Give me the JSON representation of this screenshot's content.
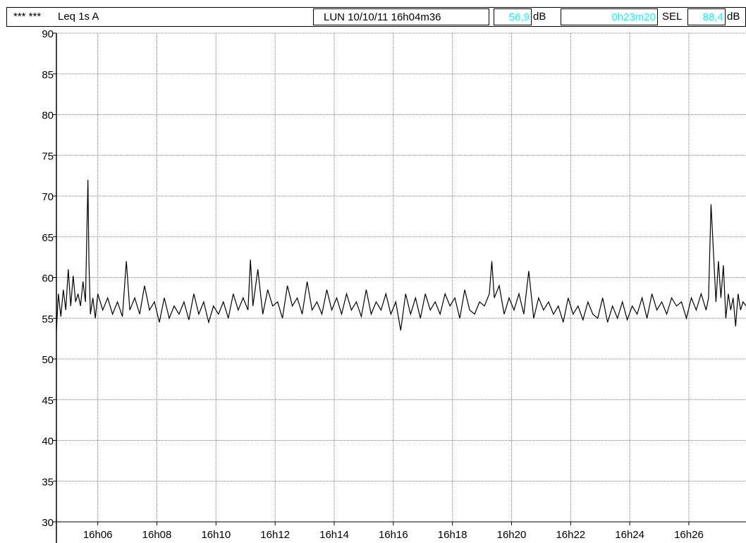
{
  "header": {
    "channel": "*** ***",
    "measure": "Leq 1s  A",
    "datetime": "LUN 10/10/11 16h04m36",
    "leq_value": "56,9",
    "leq_unit": "dB",
    "duration": "0h23m20",
    "sel_label": "SEL",
    "sel_value": "88,4",
    "sel_unit": "dB"
  },
  "colors": {
    "trace": "#000000",
    "grid": "#808080",
    "value_text": "#00ffff"
  },
  "chart_data": {
    "type": "line",
    "title": "",
    "xlabel": "",
    "ylabel": "",
    "ylim": [
      30,
      90
    ],
    "y_ticks": [
      30,
      35,
      40,
      45,
      50,
      55,
      60,
      65,
      70,
      75,
      80,
      85,
      90
    ],
    "y_tick_labels": [
      "30",
      "35",
      "40",
      "45",
      "50",
      "55",
      "60",
      "65",
      "70",
      "75",
      "80",
      "85",
      "90"
    ],
    "xlim": [
      "16:04:36",
      "16:27:56"
    ],
    "x_ticks": [
      "16:06",
      "16:08",
      "16:10",
      "16:12",
      "16:14",
      "16:16",
      "16:18",
      "16:20",
      "16:22",
      "16:24",
      "16:26"
    ],
    "x_tick_labels": [
      "16h06",
      "16h08",
      "16h10",
      "16h12",
      "16h14",
      "16h16",
      "16h18",
      "16h20",
      "16h22",
      "16h24",
      "16h26"
    ],
    "grid": true,
    "series": [
      {
        "values_description_free": true,
        "x": [
          "16:04:36",
          "16:04:40",
          "16:04:45",
          "16:04:50",
          "16:04:55",
          "16:05:00",
          "16:05:05",
          "16:05:10",
          "16:05:15",
          "16:05:20",
          "16:05:25",
          "16:05:30",
          "16:05:35",
          "16:05:40",
          "16:05:42",
          "16:05:45",
          "16:05:50",
          "16:05:55",
          "16:06:00",
          "16:06:10",
          "16:06:20",
          "16:06:30",
          "16:06:40",
          "16:06:50",
          "16:06:58",
          "16:07:05",
          "16:07:15",
          "16:07:25",
          "16:07:35",
          "16:07:45",
          "16:07:55",
          "16:08:05",
          "16:08:15",
          "16:08:25",
          "16:08:35",
          "16:08:45",
          "16:08:55",
          "16:09:05",
          "16:09:15",
          "16:09:25",
          "16:09:35",
          "16:09:45",
          "16:09:55",
          "16:10:05",
          "16:10:15",
          "16:10:25",
          "16:10:35",
          "16:10:45",
          "16:10:55",
          "16:11:05",
          "16:11:10",
          "16:11:15",
          "16:11:25",
          "16:11:35",
          "16:11:45",
          "16:11:55",
          "16:12:05",
          "16:12:15",
          "16:12:25",
          "16:12:35",
          "16:12:45",
          "16:12:55",
          "16:13:05",
          "16:13:15",
          "16:13:25",
          "16:13:35",
          "16:13:45",
          "16:13:55",
          "16:14:05",
          "16:14:15",
          "16:14:25",
          "16:14:35",
          "16:14:45",
          "16:14:55",
          "16:15:05",
          "16:15:15",
          "16:15:25",
          "16:15:35",
          "16:15:45",
          "16:15:55",
          "16:16:05",
          "16:16:15",
          "16:16:25",
          "16:16:35",
          "16:16:45",
          "16:16:55",
          "16:17:05",
          "16:17:15",
          "16:17:25",
          "16:17:35",
          "16:17:45",
          "16:17:55",
          "16:18:05",
          "16:18:15",
          "16:18:25",
          "16:18:35",
          "16:18:45",
          "16:18:55",
          "16:19:05",
          "16:19:15",
          "16:19:20",
          "16:19:25",
          "16:19:35",
          "16:19:45",
          "16:19:55",
          "16:20:05",
          "16:20:15",
          "16:20:25",
          "16:20:35",
          "16:20:45",
          "16:20:55",
          "16:21:05",
          "16:21:15",
          "16:21:25",
          "16:21:35",
          "16:21:45",
          "16:21:55",
          "16:22:05",
          "16:22:15",
          "16:22:25",
          "16:22:35",
          "16:22:45",
          "16:22:55",
          "16:23:05",
          "16:23:15",
          "16:23:25",
          "16:23:35",
          "16:23:45",
          "16:23:55",
          "16:24:05",
          "16:24:15",
          "16:24:25",
          "16:24:35",
          "16:24:45",
          "16:24:55",
          "16:25:05",
          "16:25:15",
          "16:25:25",
          "16:25:35",
          "16:25:45",
          "16:25:55",
          "16:26:05",
          "16:26:15",
          "16:26:25",
          "16:26:35",
          "16:26:40",
          "16:26:45",
          "16:26:50",
          "16:26:55",
          "16:27:00",
          "16:27:05",
          "16:27:10",
          "16:27:15",
          "16:27:20",
          "16:27:25",
          "16:27:30",
          "16:27:35",
          "16:27:40",
          "16:27:45",
          "16:27:50",
          "16:27:56"
        ],
        "values": [
          53.5,
          58.0,
          55.2,
          58.5,
          56.0,
          61.0,
          56.5,
          60.2,
          57.0,
          58.0,
          56.5,
          59.5,
          57.0,
          72.0,
          62.0,
          55.5,
          57.5,
          55.0,
          58.0,
          56.0,
          57.5,
          55.5,
          57.0,
          55.2,
          62.0,
          56.0,
          57.5,
          55.5,
          59.0,
          56.0,
          57.0,
          54.5,
          57.5,
          55.0,
          56.5,
          55.5,
          57.0,
          54.8,
          58.0,
          55.5,
          57.0,
          54.5,
          56.5,
          55.5,
          57.0,
          55.0,
          58.0,
          56.0,
          57.5,
          56.0,
          62.2,
          56.5,
          61.0,
          55.5,
          58.5,
          56.5,
          57.0,
          55.0,
          59.0,
          56.5,
          57.5,
          55.5,
          59.5,
          56.0,
          57.0,
          55.5,
          58.5,
          56.0,
          57.5,
          55.5,
          58.0,
          56.0,
          57.0,
          55.2,
          58.5,
          55.5,
          57.0,
          56.0,
          58.0,
          55.5,
          57.0,
          53.5,
          58.0,
          55.5,
          57.5,
          55.0,
          58.0,
          56.0,
          57.0,
          55.5,
          58.0,
          56.5,
          57.5,
          55.0,
          58.5,
          56.0,
          55.5,
          57.0,
          56.5,
          58.0,
          62.0,
          57.5,
          59.0,
          55.5,
          57.5,
          56.0,
          58.0,
          55.5,
          60.8,
          55.0,
          57.5,
          56.0,
          57.0,
          55.5,
          56.5,
          54.5,
          57.5,
          55.5,
          56.5,
          54.8,
          57.0,
          55.5,
          55.0,
          57.5,
          54.5,
          56.5,
          55.0,
          57.0,
          54.8,
          56.5,
          55.5,
          57.5,
          55.0,
          58.0,
          56.0,
          57.0,
          55.5,
          57.5,
          56.5,
          57.0,
          55.0,
          57.5,
          56.0,
          58.0,
          56.0,
          57.5,
          69.0,
          63.0,
          57.0,
          62.0,
          57.5,
          61.5,
          55.0,
          58.0,
          56.0,
          57.5,
          54.0,
          58.0,
          56.0,
          57.0,
          56.5
        ]
      }
    ]
  }
}
